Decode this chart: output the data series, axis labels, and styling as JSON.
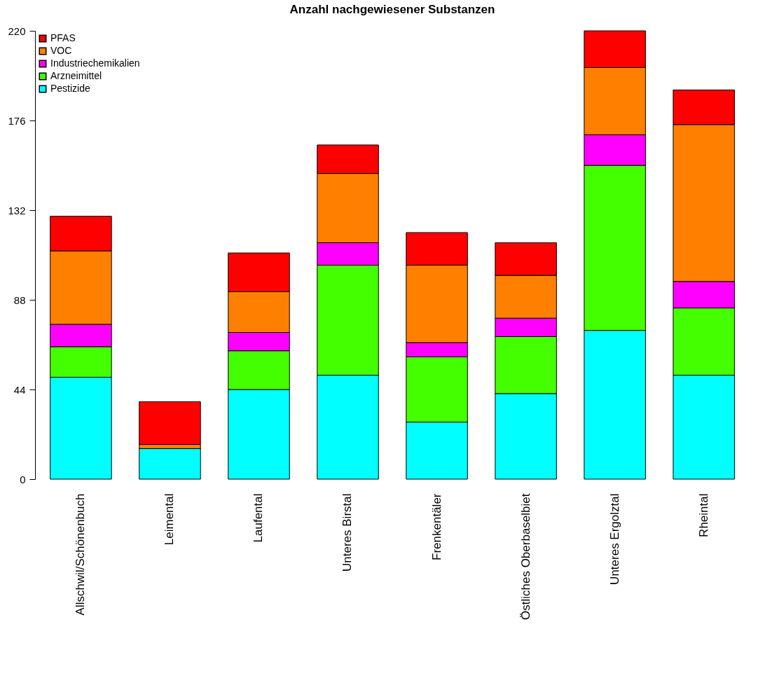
{
  "chart_data": {
    "type": "bar",
    "title": "Anzahl nachgewiesener Substanzen",
    "stacked": true,
    "legend": "top left",
    "categories": [
      "Allschwil/Schönenbuch",
      "Leimental",
      "Laufental",
      "Unteres Birstal",
      "Frenkentäler",
      "Östliches Oberbaselbiet",
      "Unteres Ergolztal",
      "Rheintal"
    ],
    "series": [
      {
        "name": "Pestizide",
        "color": "#00ffff",
        "values": [
          50,
          15,
          44,
          51,
          28,
          42,
          73,
          51
        ]
      },
      {
        "name": "Arzneimittel",
        "color": "#44ff00",
        "values": [
          15,
          0,
          19,
          54,
          32,
          28,
          81,
          33
        ]
      },
      {
        "name": "Industriechemikalien",
        "color": "#ff00ff",
        "values": [
          11,
          0,
          9,
          11,
          7,
          9,
          15,
          13
        ]
      },
      {
        "name": "VOC",
        "color": "#ff8000",
        "values": [
          36,
          2,
          20,
          34,
          38,
          21,
          33,
          77
        ]
      },
      {
        "name": "PFAS",
        "color": "#ff0000",
        "values": [
          17,
          21,
          19,
          14,
          16,
          16,
          18,
          17
        ]
      }
    ],
    "ylim": [
      0,
      220
    ],
    "yticks": [
      0,
      44,
      88,
      132,
      176,
      220
    ]
  }
}
